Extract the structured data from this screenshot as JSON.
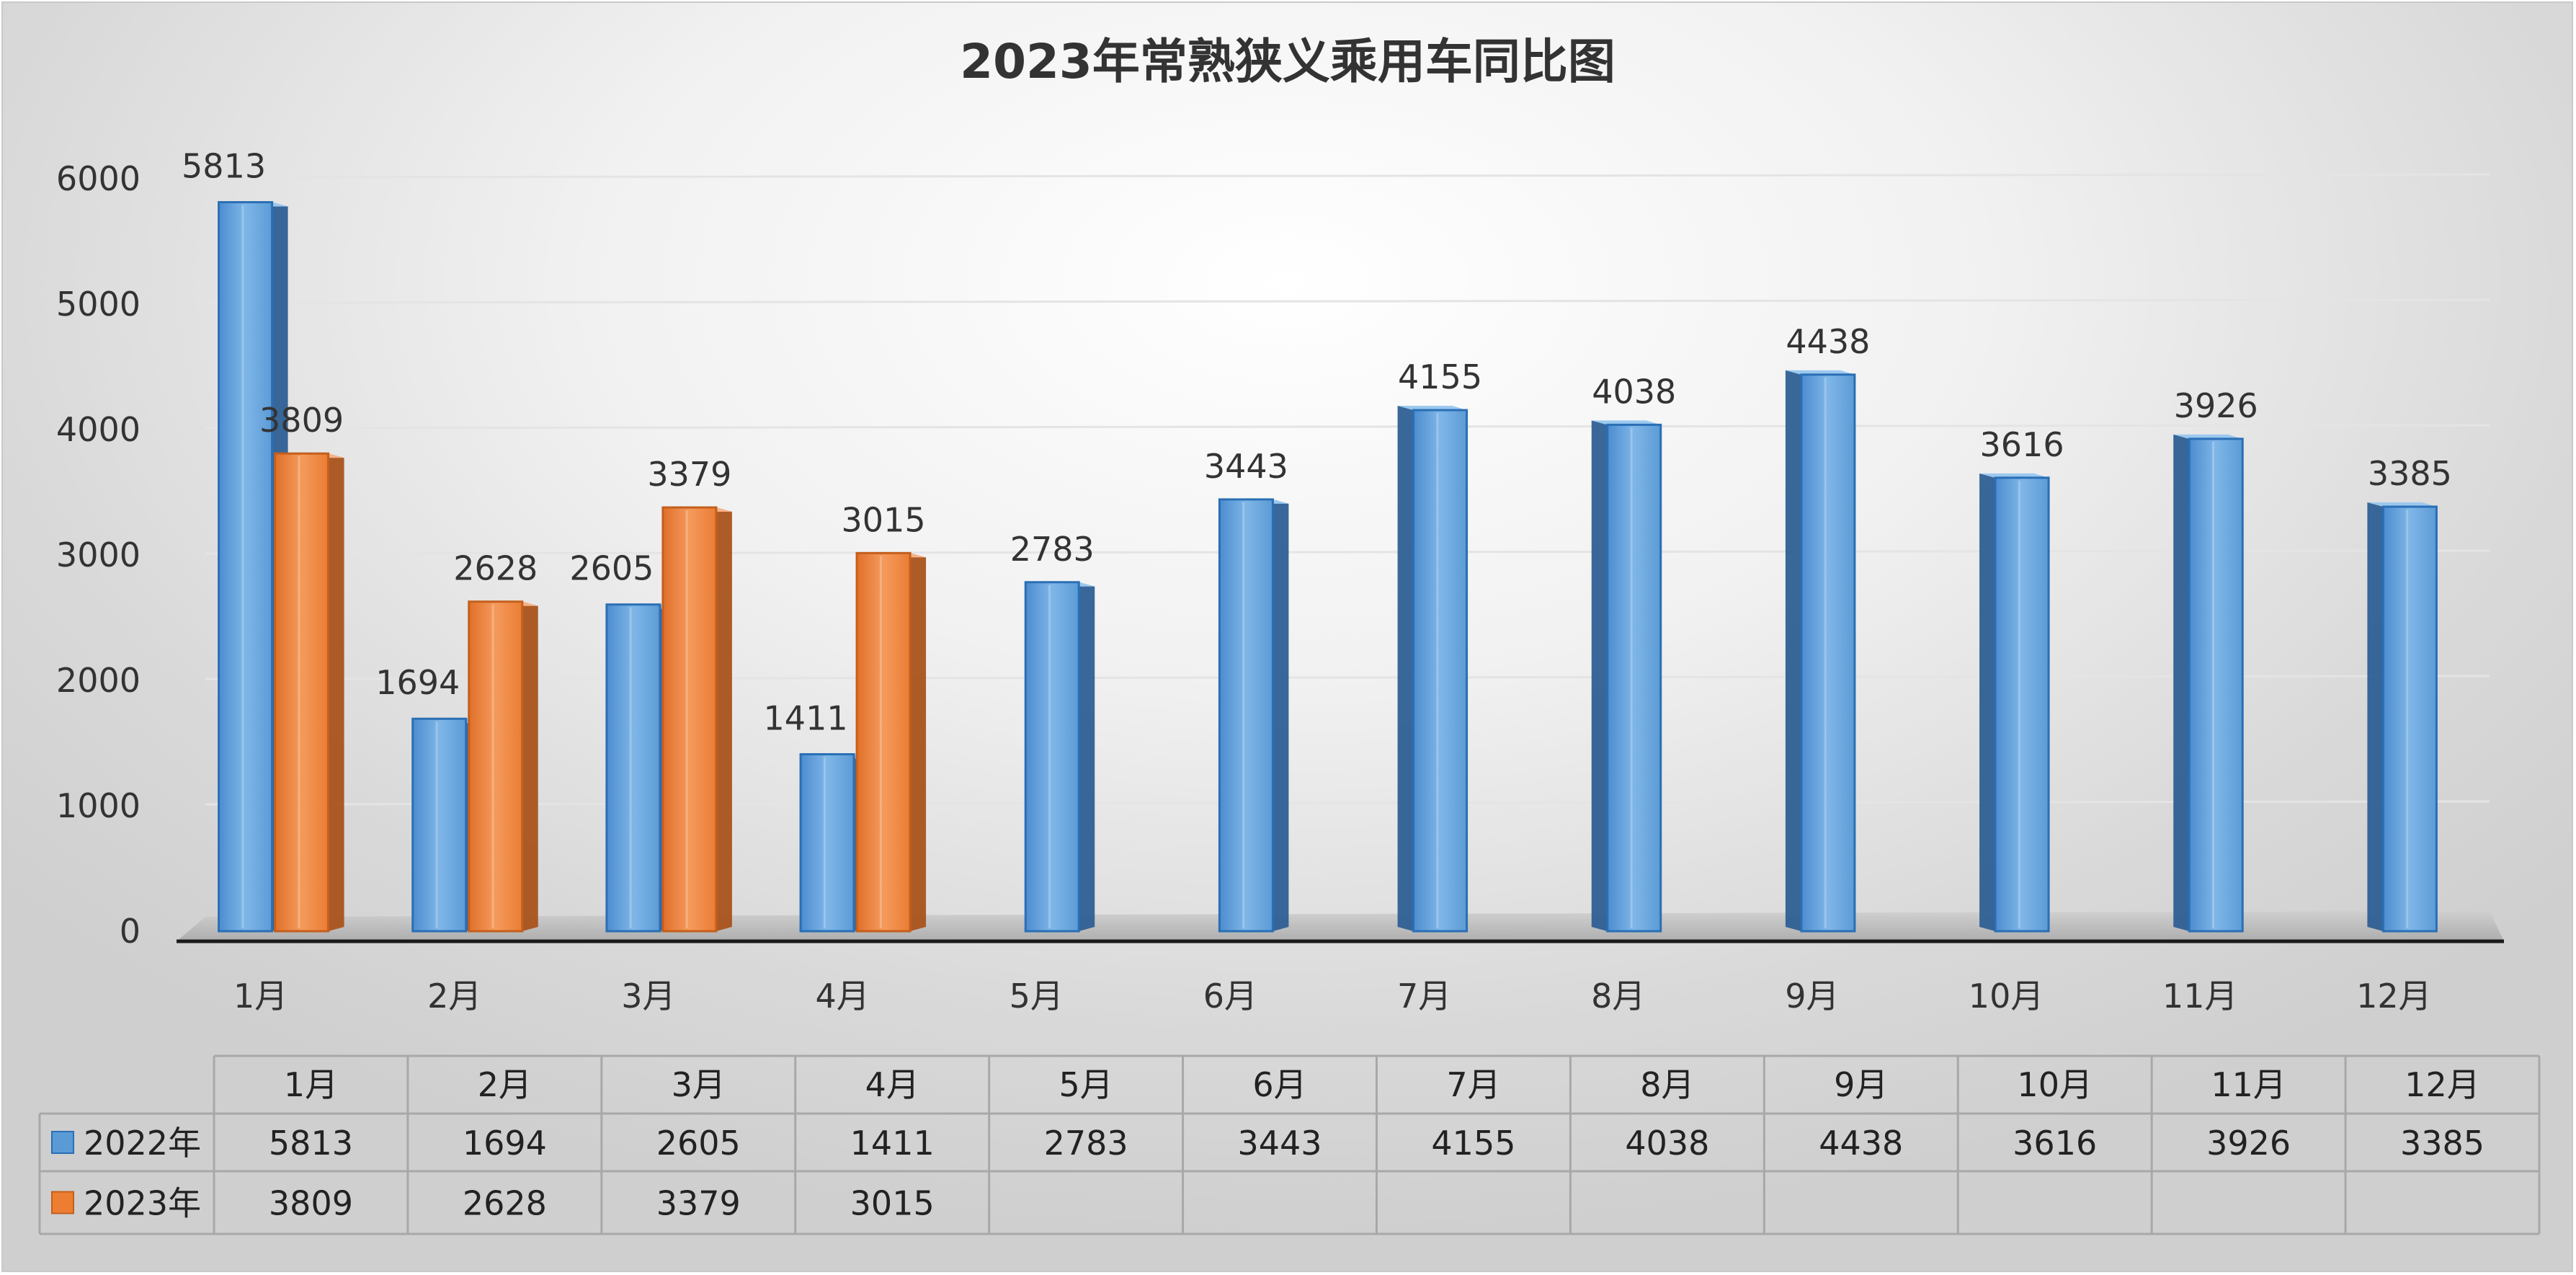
{
  "chart_data": {
    "type": "bar",
    "title": "2023年常熟狭义乘用车同比图",
    "categories": [
      "1月",
      "2月",
      "3月",
      "4月",
      "5月",
      "6月",
      "7月",
      "8月",
      "9月",
      "10月",
      "11月",
      "12月"
    ],
    "series": [
      {
        "name": "2022年",
        "color": "#5b9bd5",
        "values": [
          5813,
          1694,
          2605,
          1411,
          2783,
          3443,
          4155,
          4038,
          4438,
          3616,
          3926,
          3385
        ]
      },
      {
        "name": "2023年",
        "color": "#ed7d31",
        "values": [
          3809,
          2628,
          3379,
          3015,
          null,
          null,
          null,
          null,
          null,
          null,
          null,
          null
        ]
      }
    ],
    "yticks": [
      0,
      1000,
      2000,
      3000,
      4000,
      5000,
      6000
    ],
    "ylim": [
      0,
      6000
    ],
    "grid": true,
    "legend": "data-table",
    "data_table": true,
    "style": "3d-column"
  }
}
